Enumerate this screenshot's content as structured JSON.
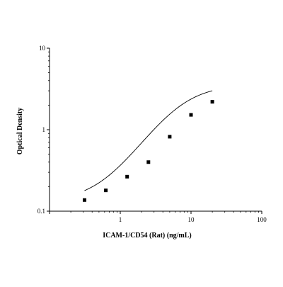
{
  "chart_data": {
    "type": "scatter",
    "xlabel": "ICAM-1/CD54 (Rat) (ng/mL)",
    "ylabel": "Optical Density",
    "xscale": "log",
    "yscale": "log",
    "xlim": [
      0.1,
      100
    ],
    "ylim": [
      0.1,
      10
    ],
    "x_ticks": [
      "1",
      "10",
      "100"
    ],
    "y_ticks": [
      "0.1",
      "1",
      "10"
    ],
    "grid": false,
    "legend": "none",
    "points": {
      "x": [
        0.3125,
        0.625,
        1.25,
        2.5,
        5,
        10,
        20
      ],
      "y": [
        0.137,
        0.18,
        0.265,
        0.4,
        0.82,
        1.52,
        2.2
      ]
    },
    "fit_curve": {
      "model": "4PL",
      "bottom": 0.13,
      "top": 3.6,
      "ec50": 6.5,
      "hill": 1.4,
      "x_range": [
        0.3125,
        20
      ]
    }
  }
}
